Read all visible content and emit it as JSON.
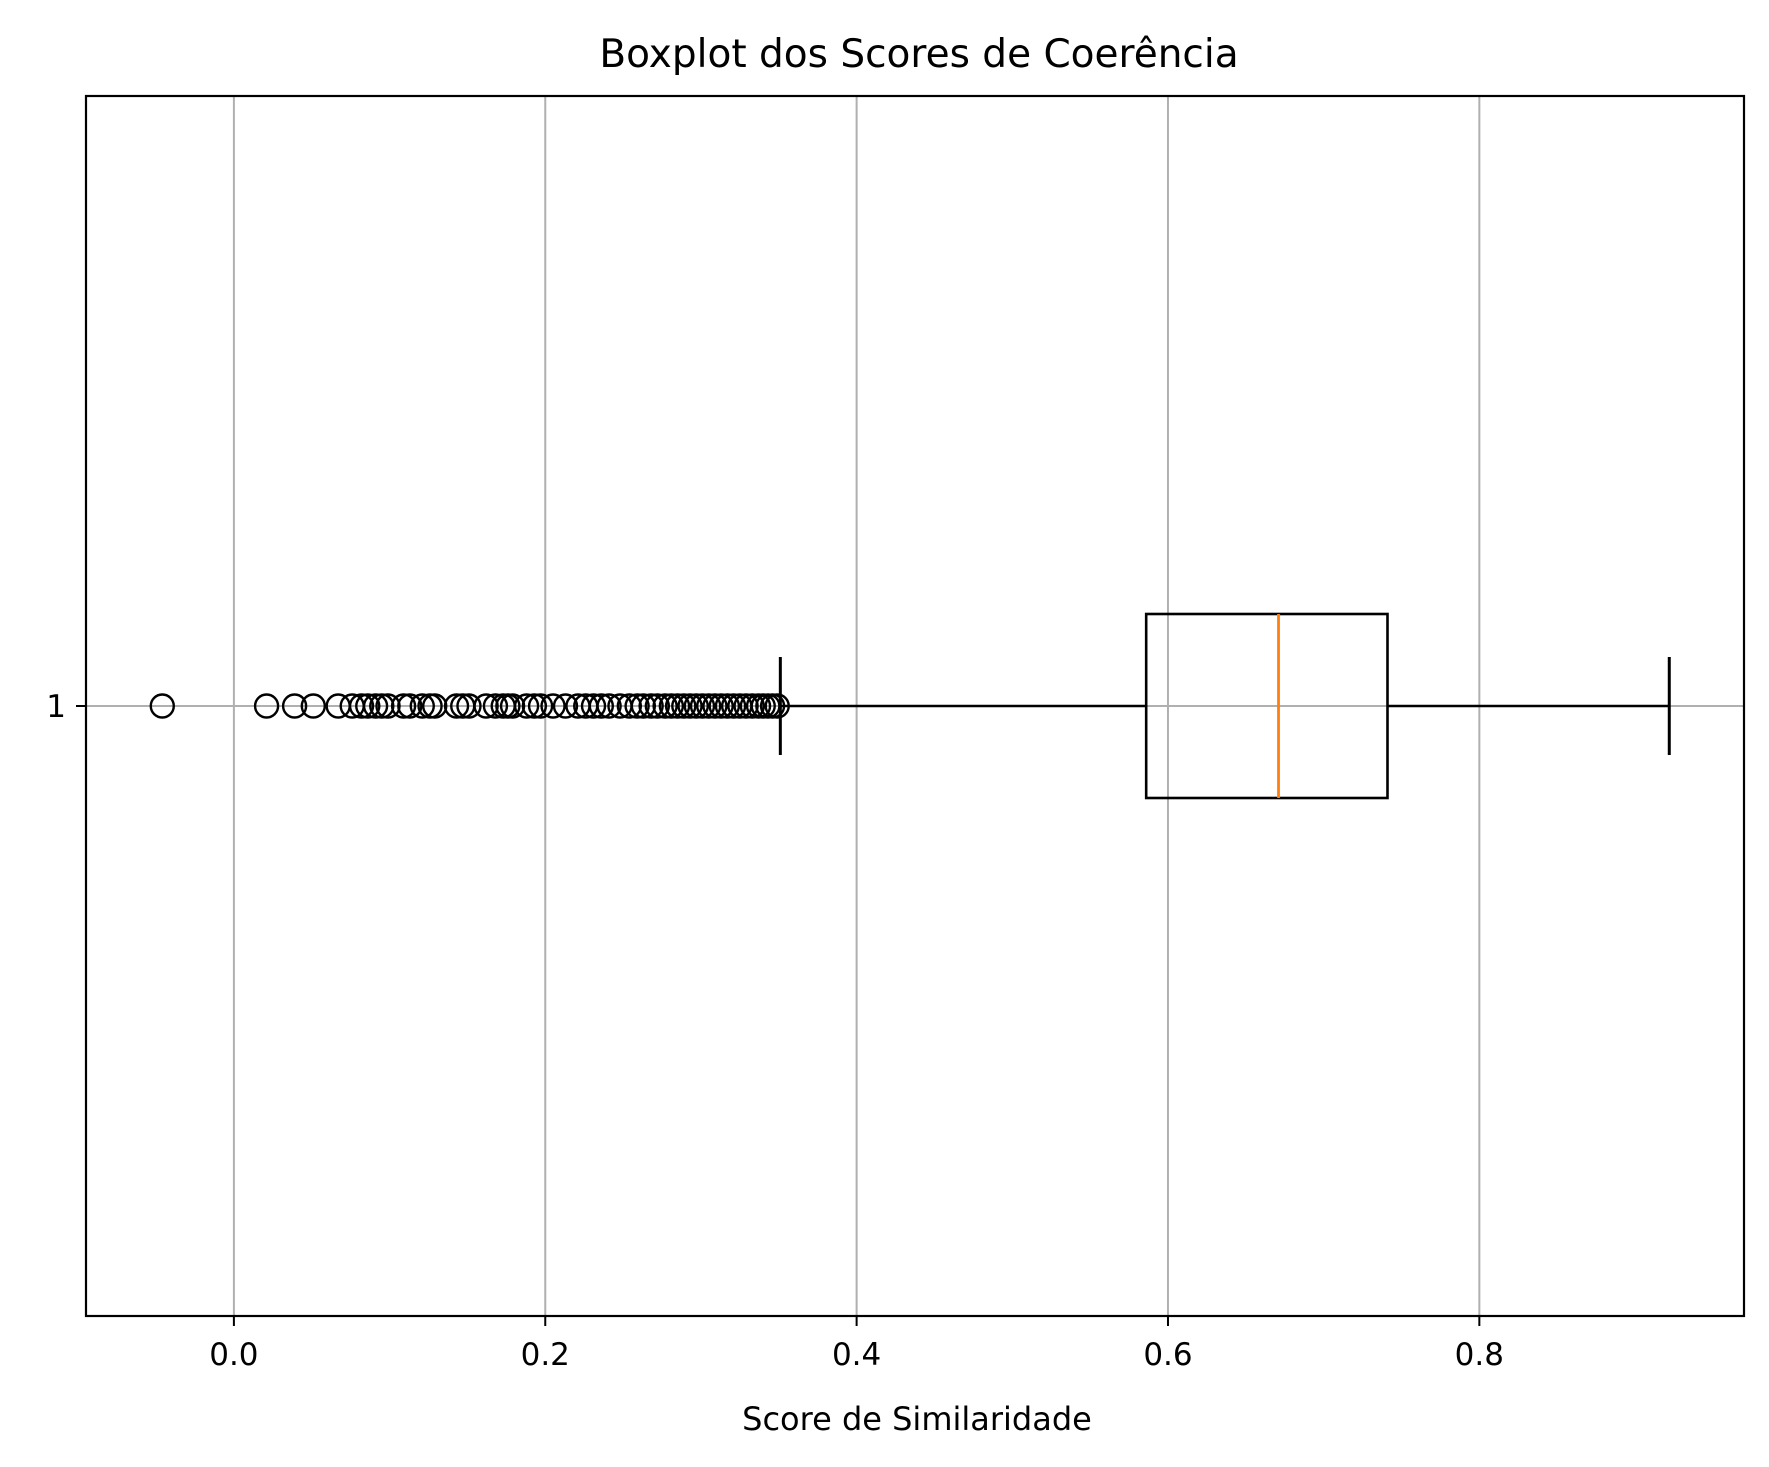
{
  "chart_data": {
    "type": "boxplot",
    "orientation": "horizontal",
    "title": "Boxplot dos Scores de Coerência",
    "xlabel": "Score de Similaridade",
    "ylabel": "",
    "xlim": [
      -0.095,
      0.97
    ],
    "x_ticks": [
      0.0,
      0.2,
      0.4,
      0.6,
      0.8
    ],
    "x_tick_labels": [
      "0.0",
      "0.2",
      "0.4",
      "0.6",
      "0.8"
    ],
    "y_ticks": [
      1
    ],
    "y_tick_labels": [
      "1"
    ],
    "grid": true,
    "colors": {
      "box": "#000000",
      "median": "#ff7f0e",
      "grid": "#b0b0b0"
    },
    "boxes": [
      {
        "position": 1,
        "whisker_low": 0.351,
        "q1": 0.586,
        "median": 0.671,
        "q3": 0.741,
        "whisker_high": 0.922,
        "outliers": [
          -0.046,
          0.021,
          0.039,
          0.051,
          0.067,
          0.076,
          0.082,
          0.086,
          0.091,
          0.095,
          0.099,
          0.109,
          0.113,
          0.121,
          0.126,
          0.129,
          0.143,
          0.147,
          0.151,
          0.162,
          0.168,
          0.173,
          0.176,
          0.179,
          0.188,
          0.193,
          0.197,
          0.205,
          0.213,
          0.221,
          0.226,
          0.231,
          0.236,
          0.241,
          0.248,
          0.254,
          0.259,
          0.263,
          0.268,
          0.272,
          0.277,
          0.281,
          0.285,
          0.289,
          0.293,
          0.297,
          0.301,
          0.305,
          0.309,
          0.313,
          0.317,
          0.321,
          0.325,
          0.329,
          0.333,
          0.337,
          0.34,
          0.343,
          0.346,
          0.349
        ]
      }
    ]
  }
}
